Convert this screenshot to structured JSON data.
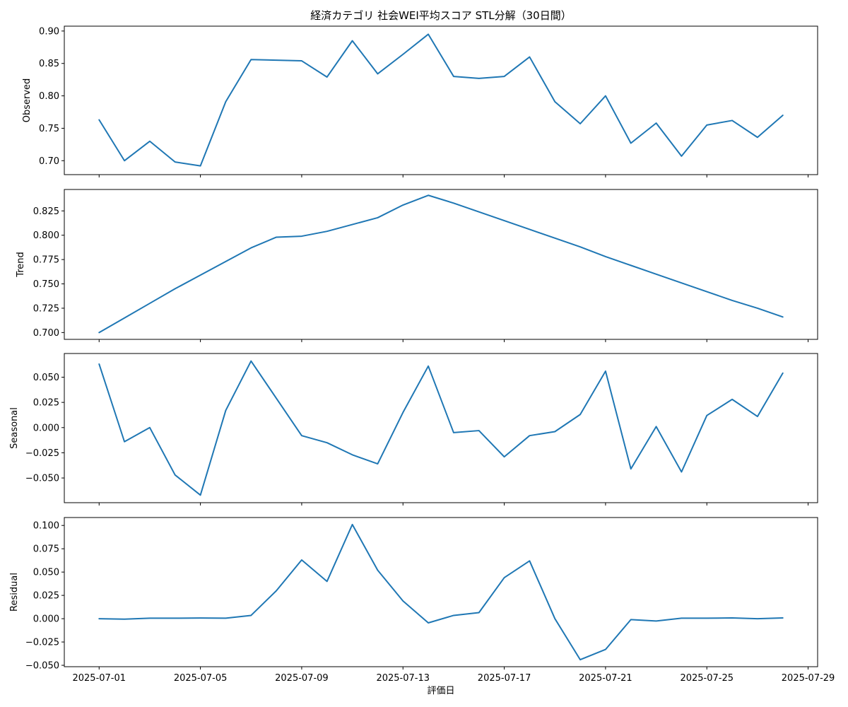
{
  "chart_data": {
    "type": "line",
    "title": "経済カテゴリ 社会WEI平均スコア STL分解（30日間）",
    "xlabel": "評価日",
    "x_tick_labels": [
      "2025-07-01",
      "2025-07-05",
      "2025-07-09",
      "2025-07-13",
      "2025-07-17",
      "2025-07-21",
      "2025-07-25",
      "2025-07-29"
    ],
    "x": [
      "2025-07-01",
      "2025-07-02",
      "2025-07-03",
      "2025-07-04",
      "2025-07-05",
      "2025-07-06",
      "2025-07-07",
      "2025-07-08",
      "2025-07-09",
      "2025-07-10",
      "2025-07-11",
      "2025-07-12",
      "2025-07-13",
      "2025-07-14",
      "2025-07-15",
      "2025-07-16",
      "2025-07-17",
      "2025-07-18",
      "2025-07-19",
      "2025-07-20",
      "2025-07-21",
      "2025-07-22",
      "2025-07-23",
      "2025-07-24",
      "2025-07-25",
      "2025-07-26",
      "2025-07-27",
      "2025-07-28"
    ],
    "xlim": [
      "2025-06-29T15:00",
      "2025-07-29T09:00"
    ],
    "color": "#1f77b4",
    "grid": false,
    "panels": [
      {
        "ylabel": "Observed",
        "ylim": [
          0.6785,
          0.9075
        ],
        "y_ticks": [
          0.7,
          0.75,
          0.8,
          0.85,
          0.9
        ],
        "y_tick_labels": [
          "0.70",
          "0.75",
          "0.80",
          "0.85",
          "0.90"
        ],
        "values": [
          0.763,
          0.7,
          0.73,
          0.698,
          0.692,
          0.791,
          0.856,
          0.855,
          0.854,
          0.829,
          0.885,
          0.834,
          0.864,
          0.895,
          0.83,
          0.827,
          0.83,
          0.86,
          0.791,
          0.757,
          0.8,
          0.727,
          0.758,
          0.707,
          0.755,
          0.762,
          0.736,
          0.77
        ]
      },
      {
        "ylabel": "Trend",
        "ylim": [
          0.693,
          0.847
        ],
        "y_ticks": [
          0.7,
          0.725,
          0.75,
          0.775,
          0.8,
          0.825
        ],
        "y_tick_labels": [
          "0.700",
          "0.725",
          "0.750",
          "0.775",
          "0.800",
          "0.825"
        ],
        "values": [
          0.7,
          0.715,
          0.73,
          0.745,
          0.759,
          0.773,
          0.787,
          0.798,
          0.799,
          0.804,
          0.811,
          0.818,
          0.831,
          0.841,
          0.833,
          0.824,
          0.815,
          0.806,
          0.797,
          0.788,
          0.778,
          0.769,
          0.76,
          0.751,
          0.742,
          0.733,
          0.725,
          0.716
        ]
      },
      {
        "ylabel": "Seasonal",
        "ylim": [
          -0.0745,
          0.0735
        ],
        "y_ticks": [
          -0.05,
          -0.025,
          0.0,
          0.025,
          0.05
        ],
        "y_tick_labels": [
          "−0.050",
          "−0.025",
          "0.000",
          "0.025",
          "0.050"
        ],
        "values": [
          0.063,
          -0.014,
          0.0,
          -0.047,
          -0.067,
          0.017,
          0.066,
          0.029,
          -0.008,
          -0.015,
          -0.027,
          -0.036,
          0.015,
          0.061,
          -0.005,
          -0.003,
          -0.029,
          -0.008,
          -0.004,
          0.013,
          0.056,
          -0.041,
          0.001,
          -0.044,
          0.012,
          0.028,
          0.011,
          0.054
        ]
      },
      {
        "ylabel": "Residual",
        "ylim": [
          -0.0515,
          0.1085
        ],
        "y_ticks": [
          -0.05,
          -0.025,
          0.0,
          0.025,
          0.05,
          0.075,
          0.1
        ],
        "y_tick_labels": [
          "−0.050",
          "−0.025",
          "0.000",
          "0.025",
          "0.050",
          "0.075",
          "0.100"
        ],
        "values": [
          0.0,
          -0.0005,
          0.0005,
          0.0005,
          0.0007,
          0.0005,
          0.0035,
          0.03,
          0.063,
          0.04,
          0.101,
          0.052,
          0.019,
          -0.0045,
          0.0035,
          0.0065,
          0.044,
          0.062,
          0.0,
          -0.044,
          -0.033,
          -0.001,
          -0.0025,
          0.0005,
          0.0005,
          0.0008,
          0.0,
          0.0008
        ]
      }
    ]
  }
}
